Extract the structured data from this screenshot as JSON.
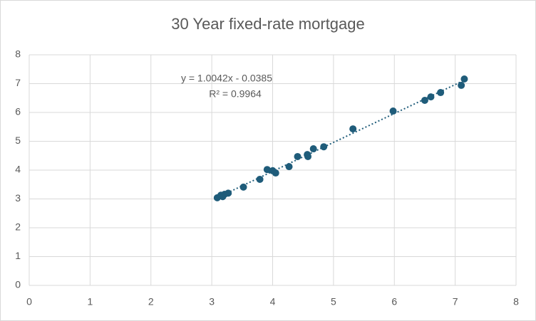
{
  "chart_data": {
    "type": "scatter",
    "title": "30 Year fixed-rate mortgage",
    "series": [
      {
        "color": "#1f5c7a",
        "x": [
          3.09,
          3.15,
          3.18,
          3.21,
          3.27,
          3.52,
          3.79,
          3.91,
          4.0,
          4.05,
          4.27,
          4.41,
          4.57,
          4.58,
          4.67,
          4.84,
          5.32,
          5.98,
          6.5,
          6.6,
          6.76,
          7.1,
          7.15
        ],
        "values": [
          3.04,
          3.13,
          3.08,
          3.16,
          3.2,
          3.41,
          3.68,
          4.02,
          3.98,
          3.9,
          4.12,
          4.47,
          4.54,
          4.47,
          4.74,
          4.81,
          5.43,
          6.05,
          6.42,
          6.54,
          6.69,
          6.94,
          7.16
        ]
      }
    ],
    "trendline": {
      "equation": "y = 1.0042x - 0.0385",
      "r_squared": "R² = 0.9964"
    },
    "xlim": [
      0,
      8
    ],
    "xticks": [
      0,
      1,
      2,
      3,
      4,
      5,
      6,
      7,
      8
    ],
    "ylim": [
      0,
      8
    ],
    "yticks": [
      0,
      1,
      2,
      3,
      4,
      5,
      6,
      7,
      8
    ],
    "grid": true
  }
}
